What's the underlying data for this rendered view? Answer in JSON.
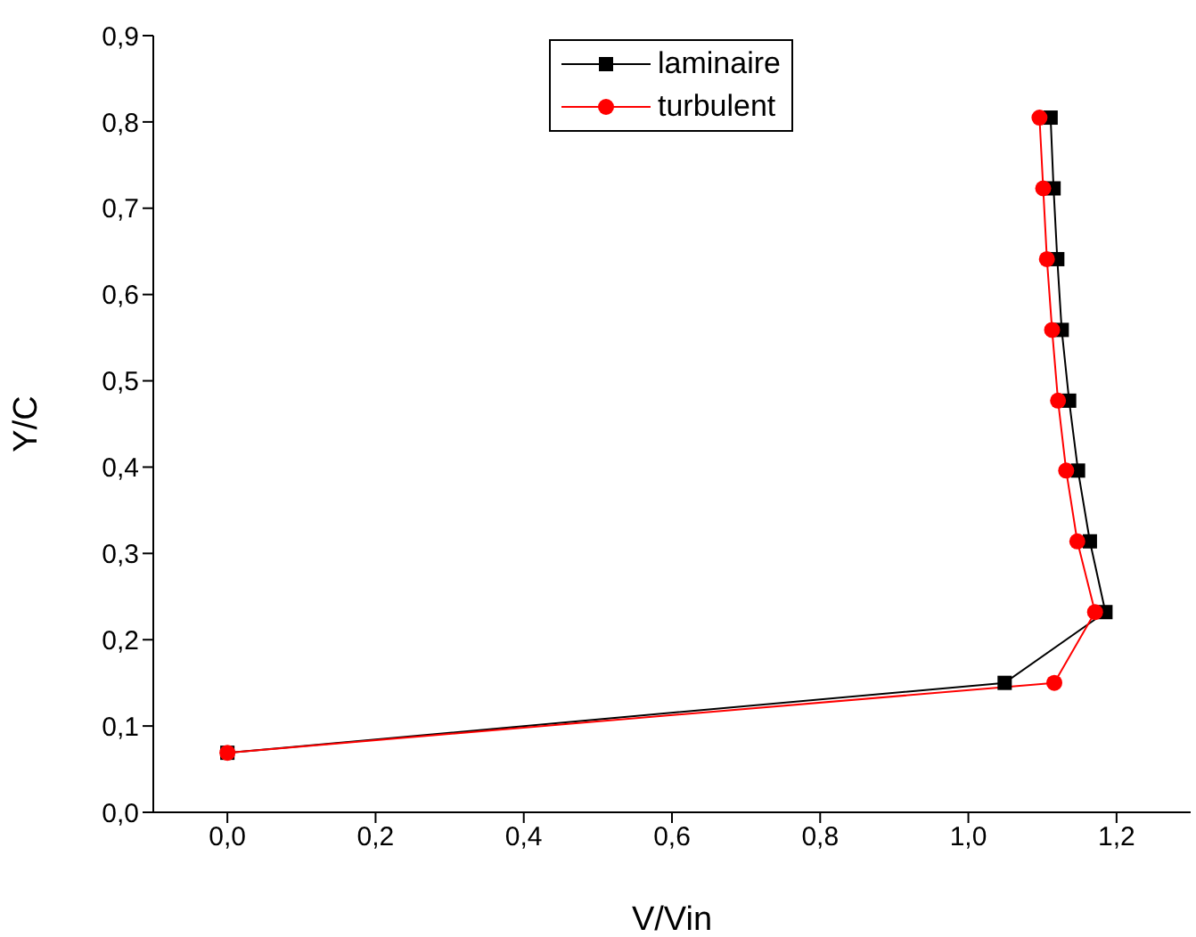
{
  "chart_data": {
    "type": "line",
    "xlabel": "V/Vin",
    "ylabel": "Y/C",
    "xlim": [
      -0.1,
      1.3
    ],
    "xticks": [
      {
        "value": 0,
        "label": "0,0"
      },
      {
        "value": 0.2,
        "label": "0,2"
      },
      {
        "value": 0.4,
        "label": "0,4"
      },
      {
        "value": 0.6,
        "label": "0,6"
      },
      {
        "value": 0.8,
        "label": "0,8"
      },
      {
        "value": 1,
        "label": "1,0"
      },
      {
        "value": 1.2,
        "label": "1,2"
      }
    ],
    "ylim": [
      0,
      0.9
    ],
    "yticks": [
      {
        "value": 0,
        "label": "0,0"
      },
      {
        "value": 0.1,
        "label": "0,1"
      },
      {
        "value": 0.2,
        "label": "0,2"
      },
      {
        "value": 0.3,
        "label": "0,3"
      },
      {
        "value": 0.4,
        "label": "0,4"
      },
      {
        "value": 0.5,
        "label": "0,5"
      },
      {
        "value": 0.6,
        "label": "0,6"
      },
      {
        "value": 0.7,
        "label": "0,7"
      },
      {
        "value": 0.8,
        "label": "0,8"
      },
      {
        "value": 0.9,
        "label": "0,9"
      }
    ],
    "grid": false,
    "legend": "top",
    "line_style": "solid",
    "series": [
      {
        "name": "laminaire",
        "color": "#000000",
        "marker": "square",
        "x": [
          0,
          1.049,
          1.185,
          1.164,
          1.148,
          1.136,
          1.126,
          1.12,
          1.115,
          1.111
        ],
        "values": [
          0.069,
          0.15,
          0.232,
          0.314,
          0.396,
          0.477,
          0.559,
          0.641,
          0.723,
          0.805
        ]
      },
      {
        "name": "turbulent",
        "color": "#ff0000",
        "marker": "circle",
        "x": [
          0,
          1.116,
          1.171,
          1.147,
          1.132,
          1.121,
          1.113,
          1.106,
          1.101,
          1.096
        ],
        "values": [
          0.069,
          0.15,
          0.232,
          0.314,
          0.396,
          0.477,
          0.559,
          0.641,
          0.723,
          0.805
        ]
      }
    ]
  }
}
